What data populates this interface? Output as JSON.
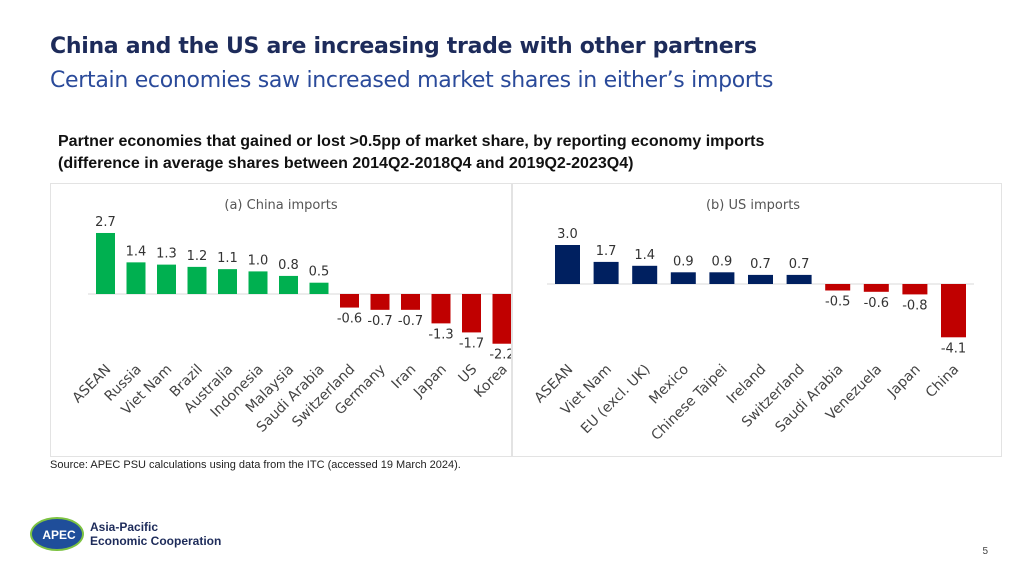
{
  "slide": {
    "title": "China and the US are increasing trade with other partners",
    "subtitle": "Certain economies saw increased market shares in either’s imports",
    "heading_line1": "Partner economies that gained or lost >0.5pp of market share, by reporting economy imports",
    "heading_line2": "(difference in average shares between 2014Q2-2018Q4 and 2019Q2-2023Q4)",
    "source": "Source: APEC PSU calculations using data from the ITC (accessed 19 March 2024).",
    "logo_mark": "APEC",
    "logo_line1": "Asia-Pacific",
    "logo_line2": "Economic Cooperation",
    "page_number": "5"
  },
  "colors": {
    "china_positive": "#00b050",
    "us_positive": "#002060",
    "negative": "#c00000",
    "title": "#1d2b5a",
    "subtitle": "#2a4a9a"
  },
  "chart_data": [
    {
      "type": "bar",
      "title": "(a) China imports",
      "categories": [
        "ASEAN",
        "Russia",
        "Viet Nam",
        "Brazil",
        "Australia",
        "Indonesia",
        "Malaysia",
        "Saudi Arabia",
        "Switzerland",
        "Germany",
        "Iran",
        "Japan",
        "US",
        "Korea"
      ],
      "values": [
        2.7,
        1.4,
        1.3,
        1.2,
        1.1,
        1.0,
        0.8,
        0.5,
        -0.6,
        -0.7,
        -0.7,
        -1.3,
        -1.7,
        -2.2
      ],
      "positive_color": "#00b050",
      "negative_color": "#c00000",
      "ylim": [
        -2.2,
        2.7
      ]
    },
    {
      "type": "bar",
      "title": "(b) US imports",
      "categories": [
        "ASEAN",
        "Viet Nam",
        "EU (excl. UK)",
        "Mexico",
        "Chinese Taipei",
        "Ireland",
        "Switzerland",
        "Saudi Arabia",
        "Venezuela",
        "Japan",
        "China"
      ],
      "values": [
        3.0,
        1.7,
        1.4,
        0.9,
        0.9,
        0.7,
        0.7,
        -0.5,
        -0.6,
        -0.8,
        -4.1
      ],
      "positive_color": "#002060",
      "negative_color": "#c00000",
      "ylim": [
        -4.1,
        3.0
      ]
    }
  ]
}
